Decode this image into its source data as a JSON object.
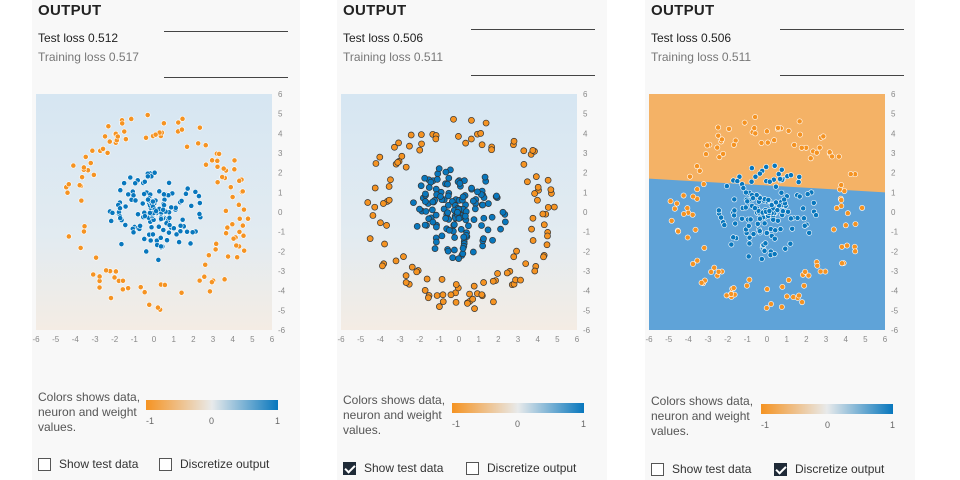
{
  "panels": [
    {
      "title": "OUTPUT",
      "test_loss": "Test loss 0.512",
      "training_loss": "Training loss 0.517",
      "legend_text": "Colors shows data, neuron and weight values.",
      "gradient_min": "-1",
      "gradient_mid": "0",
      "gradient_max": "1",
      "show_test_data": {
        "label": "Show test data",
        "checked": false
      },
      "discretize_output": {
        "label": "Discretize output",
        "checked": false
      },
      "background": "soft",
      "test_points_outlined": false
    },
    {
      "title": "OUTPUT",
      "test_loss": "Test loss 0.506",
      "training_loss": "Training loss 0.511",
      "legend_text": "Colors shows data, neuron and weight values.",
      "gradient_min": "-1",
      "gradient_mid": "0",
      "gradient_max": "1",
      "show_test_data": {
        "label": "Show test data",
        "checked": true
      },
      "discretize_output": {
        "label": "Discretize output",
        "checked": false
      },
      "background": "soft",
      "test_points_outlined": true
    },
    {
      "title": "OUTPUT",
      "test_loss": "Test loss 0.506",
      "training_loss": "Training loss 0.511",
      "legend_text": "Colors shows data, neuron and weight values.",
      "gradient_min": "-1",
      "gradient_mid": "0",
      "gradient_max": "1",
      "show_test_data": {
        "label": "Show test data",
        "checked": false
      },
      "discretize_output": {
        "label": "Discretize output",
        "checked": true
      },
      "background": "discretized",
      "test_points_outlined": false
    }
  ],
  "colors": {
    "orange": "#f59322",
    "blue": "#0877bd",
    "orange_region": "#f4b266",
    "blue_region": "#5fa3d8",
    "soft_blue": "#d6e6f2",
    "soft_orange": "#f4ece4"
  },
  "chart_data": {
    "type": "scatter",
    "xlim": [
      -6,
      6
    ],
    "ylim": [
      -6,
      6
    ],
    "x_ticks": [
      "-6",
      "-5",
      "-4",
      "-3",
      "-2",
      "-1",
      "0",
      "1",
      "2",
      "3",
      "4",
      "5",
      "6"
    ],
    "y_ticks": [
      "6",
      "5",
      "4",
      "3",
      "2",
      "1",
      "0",
      "-1",
      "-2",
      "-3",
      "-4",
      "-5",
      "-6"
    ],
    "series": [
      {
        "label": "inner cluster",
        "color": "blue",
        "shape": "disk",
        "radius_range": [
          0,
          2.5
        ]
      },
      {
        "label": "outer ring",
        "color": "orange",
        "shape": "ring",
        "radius_range": [
          3.5,
          5
        ]
      }
    ]
  }
}
